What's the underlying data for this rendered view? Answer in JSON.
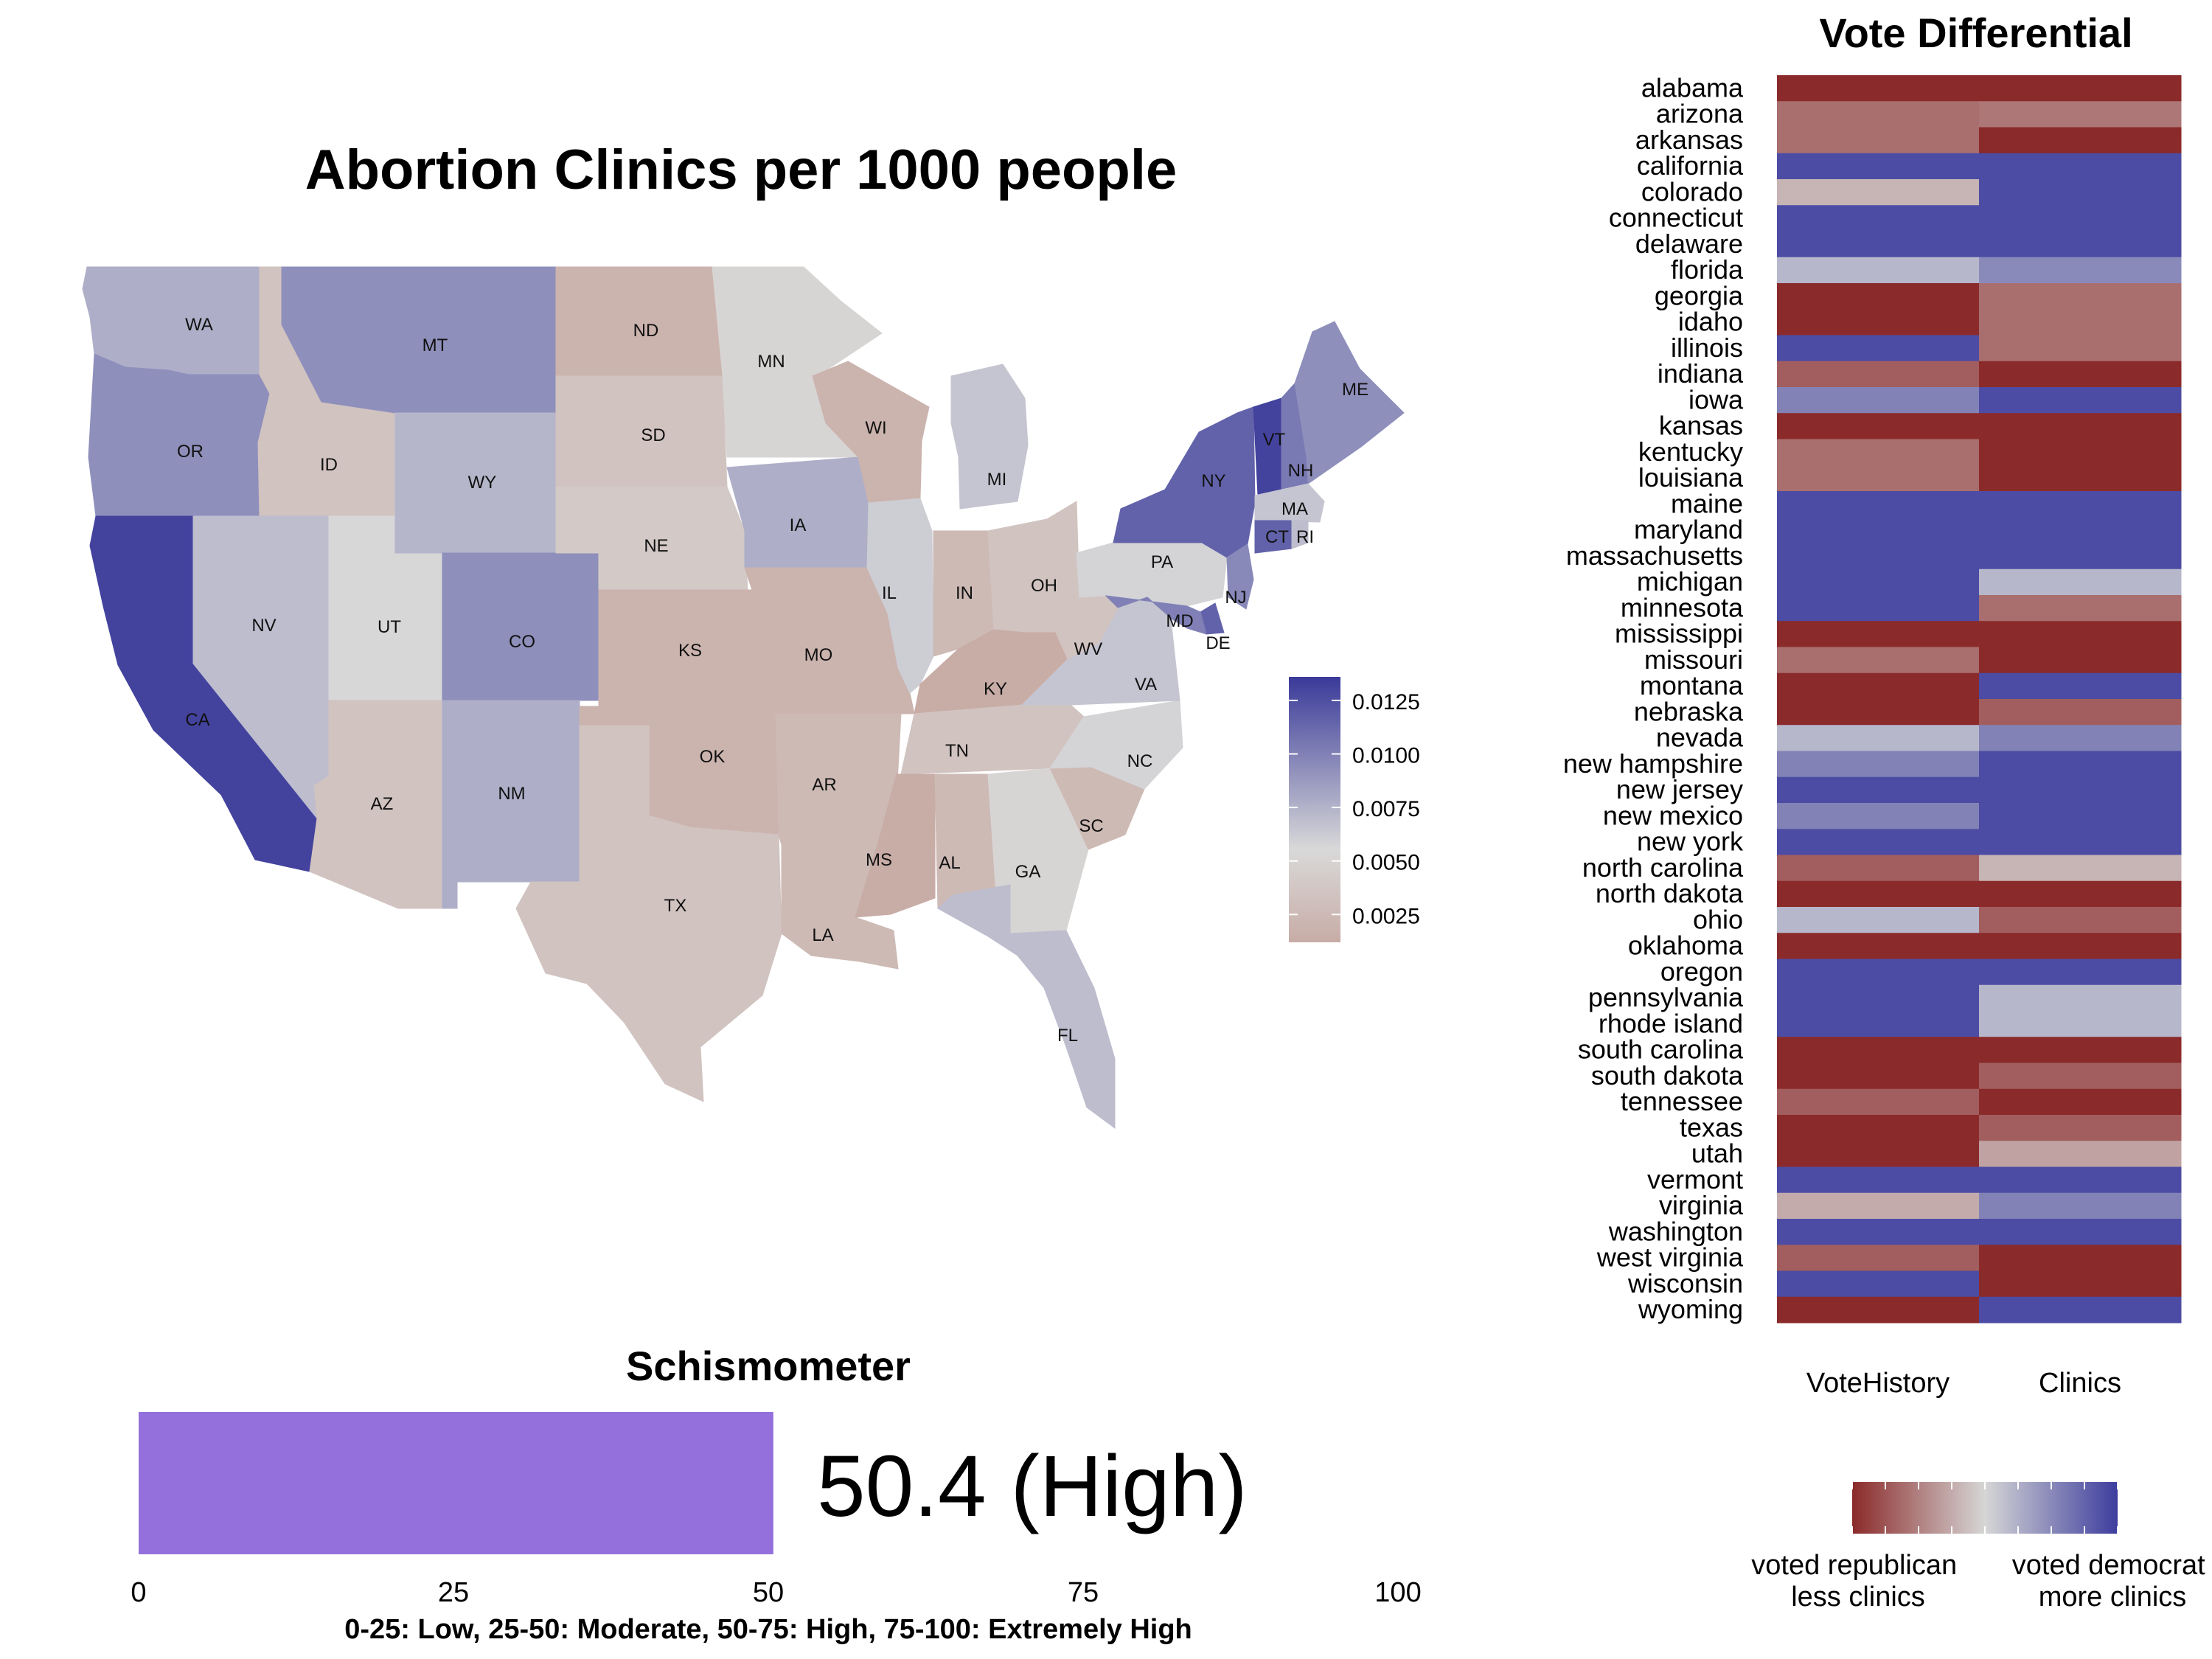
{
  "chart_data": [
    {
      "type": "choropleth-map",
      "title": "Abortion Clinics per 1000 people",
      "legend": {
        "ticks": [
          "0.0125",
          "0.0100",
          "0.0075",
          "0.0050",
          "0.0025"
        ],
        "tick_values": [
          0.0125,
          0.01,
          0.0075,
          0.005,
          0.0025
        ],
        "range": [
          0.0012,
          0.0136
        ],
        "colors": [
          "#c8aca6",
          "#d9d9d9",
          "#3a3a9a"
        ]
      },
      "states": [
        {
          "abbr": "WA",
          "value": 0.006
        },
        {
          "abbr": "OR",
          "value": 0.008
        },
        {
          "abbr": "CA",
          "value": 0.013
        },
        {
          "abbr": "ID",
          "value": 0.0022
        },
        {
          "abbr": "NV",
          "value": 0.005
        },
        {
          "abbr": "UT",
          "value": 0.0033
        },
        {
          "abbr": "AZ",
          "value": 0.0022
        },
        {
          "abbr": "MT",
          "value": 0.008
        },
        {
          "abbr": "WY",
          "value": 0.0055
        },
        {
          "abbr": "CO",
          "value": 0.008
        },
        {
          "abbr": "NM",
          "value": 0.006
        },
        {
          "abbr": "ND",
          "value": 0.0015
        },
        {
          "abbr": "SD",
          "value": 0.0022
        },
        {
          "abbr": "NE",
          "value": 0.0025
        },
        {
          "abbr": "KS",
          "value": 0.0015
        },
        {
          "abbr": "OK",
          "value": 0.0015
        },
        {
          "abbr": "TX",
          "value": 0.0022
        },
        {
          "abbr": "MN",
          "value": 0.003
        },
        {
          "abbr": "IA",
          "value": 0.006
        },
        {
          "abbr": "MO",
          "value": 0.0015
        },
        {
          "abbr": "AR",
          "value": 0.0018
        },
        {
          "abbr": "LA",
          "value": 0.0018
        },
        {
          "abbr": "WI",
          "value": 0.0015
        },
        {
          "abbr": "IL",
          "value": 0.004
        },
        {
          "abbr": "MI",
          "value": 0.0045
        },
        {
          "abbr": "IN",
          "value": 0.0018
        },
        {
          "abbr": "OH",
          "value": 0.0022
        },
        {
          "abbr": "KY",
          "value": 0.0012
        },
        {
          "abbr": "TN",
          "value": 0.0022
        },
        {
          "abbr": "MS",
          "value": 0.0012
        },
        {
          "abbr": "AL",
          "value": 0.0018
        },
        {
          "abbr": "GA",
          "value": 0.003
        },
        {
          "abbr": "FL",
          "value": 0.005
        },
        {
          "abbr": "SC",
          "value": 0.0018
        },
        {
          "abbr": "NC",
          "value": 0.0035
        },
        {
          "abbr": "VA",
          "value": 0.0045
        },
        {
          "abbr": "WV",
          "value": 0.0022
        },
        {
          "abbr": "PA",
          "value": 0.0035
        },
        {
          "abbr": "NY",
          "value": 0.011
        },
        {
          "abbr": "VT",
          "value": 0.013
        },
        {
          "abbr": "NH",
          "value": 0.0095
        },
        {
          "abbr": "ME",
          "value": 0.008
        },
        {
          "abbr": "MA",
          "value": 0.0045
        },
        {
          "abbr": "CT",
          "value": 0.011
        },
        {
          "abbr": "RI",
          "value": 0.005
        },
        {
          "abbr": "NJ",
          "value": 0.0085
        },
        {
          "abbr": "DE",
          "value": 0.011
        },
        {
          "abbr": "MD",
          "value": 0.009
        }
      ]
    },
    {
      "type": "heatmap",
      "title": "Vote Differential",
      "columns": [
        "VoteHistory",
        "Clinics"
      ],
      "rows": [
        "alabama",
        "arizona",
        "arkansas",
        "california",
        "colorado",
        "connecticut",
        "delaware",
        "florida",
        "georgia",
        "idaho",
        "illinois",
        "indiana",
        "iowa",
        "kansas",
        "kentucky",
        "louisiana",
        "maine",
        "maryland",
        "massachusetts",
        "michigan",
        "minnesota",
        "mississippi",
        "missouri",
        "montana",
        "nebraska",
        "nevada",
        "new hampshire",
        "new jersey",
        "new mexico",
        "new york",
        "north carolina",
        "north dakota",
        "ohio",
        "oklahoma",
        "oregon",
        "pennsylvania",
        "rhode island",
        "south carolina",
        "south dakota",
        "tennessee",
        "texas",
        "utah",
        "vermont",
        "virginia",
        "washington",
        "west virginia",
        "wisconsin",
        "wyoming"
      ],
      "values": [
        [
          -1.0,
          -1.0
        ],
        [
          -0.6,
          -0.55
        ],
        [
          -0.6,
          -1.0
        ],
        [
          0.9,
          0.9
        ],
        [
          -0.2,
          0.9
        ],
        [
          0.9,
          0.9
        ],
        [
          0.9,
          0.9
        ],
        [
          0.2,
          0.5
        ],
        [
          -1.0,
          -0.6
        ],
        [
          -1.0,
          -0.6
        ],
        [
          0.9,
          -0.6
        ],
        [
          -0.7,
          -1.0
        ],
        [
          0.55,
          0.9
        ],
        [
          -1.0,
          -1.0
        ],
        [
          -0.6,
          -1.0
        ],
        [
          -0.6,
          -1.0
        ],
        [
          0.9,
          0.9
        ],
        [
          0.9,
          0.9
        ],
        [
          0.9,
          0.9
        ],
        [
          0.9,
          0.2
        ],
        [
          0.9,
          -0.6
        ],
        [
          -1.0,
          -1.0
        ],
        [
          -0.6,
          -1.0
        ],
        [
          -1.0,
          0.9
        ],
        [
          -1.0,
          -0.7
        ],
        [
          0.2,
          0.55
        ],
        [
          0.55,
          0.9
        ],
        [
          0.9,
          0.9
        ],
        [
          0.55,
          0.9
        ],
        [
          0.9,
          0.9
        ],
        [
          -0.7,
          -0.2
        ],
        [
          -1.0,
          -1.0
        ],
        [
          0.2,
          -0.7
        ],
        [
          -1.0,
          -1.0
        ],
        [
          0.9,
          0.9
        ],
        [
          0.9,
          0.2
        ],
        [
          0.9,
          0.2
        ],
        [
          -1.0,
          -1.0
        ],
        [
          -1.0,
          -0.7
        ],
        [
          -0.7,
          -1.0
        ],
        [
          -1.0,
          -0.7
        ],
        [
          -1.0,
          -0.3
        ],
        [
          0.9,
          0.9
        ],
        [
          -0.25,
          0.55
        ],
        [
          0.9,
          0.9
        ],
        [
          -0.7,
          -1.0
        ],
        [
          0.9,
          -1.0
        ],
        [
          -1.0,
          0.9
        ]
      ],
      "legend": {
        "left": "voted republican\nless clinics",
        "right": "voted democrat\nmore clinics"
      },
      "colors": [
        "#8b2a2a",
        "#d6d6d6",
        "#3d3d9e"
      ]
    },
    {
      "type": "bar",
      "title": "Schismometer",
      "value": 50.4,
      "value_label": "50.4 (High)",
      "xlim": [
        0,
        100
      ],
      "ticks": [
        0,
        25,
        50,
        75,
        100
      ],
      "caption": "0-25: Low, 25-50: Moderate, 50-75: High, 75-100: Extremely High",
      "color": "#9370db"
    }
  ]
}
